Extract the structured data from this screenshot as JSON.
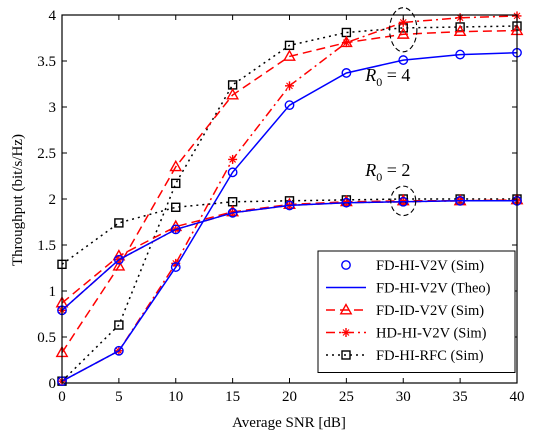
{
  "chart_data": {
    "type": "line",
    "xlabel": "Average SNR [dB]",
    "ylabel": "Throughput (bit/s/Hz)",
    "xlim": [
      0,
      40
    ],
    "ylim": [
      0,
      4
    ],
    "x_ticks": [
      0,
      5,
      10,
      15,
      20,
      25,
      30,
      35,
      40
    ],
    "y_ticks": [
      0,
      0.5,
      1,
      1.5,
      2,
      2.5,
      3,
      3.5,
      4
    ],
    "grid": false,
    "legend_position": "bottom-right",
    "legend": [
      {
        "label": "FD-HI-V2V (Sim)",
        "series": "fd_hi_sim"
      },
      {
        "label": "FD-HI-V2V (Theo)",
        "series": "fd_hi_theo"
      },
      {
        "label": "FD-ID-V2V (Sim)",
        "series": "fd_id_sim"
      },
      {
        "label": "HD-HI-V2V (Sim)",
        "series": "hd_hi_sim"
      },
      {
        "label": "FD-HI-RFC (Sim)",
        "series": "fd_rfc_sim"
      }
    ],
    "styles": {
      "fd_hi_sim": {
        "color": "#0000ff",
        "dash": "none",
        "marker": "circle",
        "line": false
      },
      "fd_hi_theo": {
        "color": "#0000ff",
        "dash": "none",
        "marker": "none",
        "line": true
      },
      "fd_id_sim": {
        "color": "#ff0000",
        "dash": "9,5",
        "marker": "triangle",
        "line": true
      },
      "hd_hi_sim": {
        "color": "#ff0000",
        "dash": "9,4,2,4",
        "marker": "plus",
        "line": true
      },
      "fd_rfc_sim": {
        "color": "#000000",
        "dash": "2,4",
        "marker": "square",
        "line": true
      }
    },
    "groups": [
      {
        "label_main": "R",
        "label_sub": "0",
        "label_rest": " = 4",
        "label_at": [
          30,
          3.28
        ],
        "ellipse": {
          "cx": 30,
          "cy": 3.84,
          "rx": 1.2,
          "ry": 0.24
        },
        "series": {
          "fd_hi_sim": {
            "x": [
              0,
              5,
              10,
              15,
              20,
              25,
              30,
              35,
              40
            ],
            "y": [
              0.02,
              0.35,
              1.26,
              2.29,
              3.02,
              3.37,
              3.51,
              3.57,
              3.59
            ]
          },
          "fd_hi_theo": {
            "x": [
              0,
              5,
              10,
              15,
              20,
              25,
              30,
              35,
              40
            ],
            "y": [
              0.02,
              0.35,
              1.26,
              2.29,
              3.02,
              3.37,
              3.51,
              3.57,
              3.59
            ]
          },
          "fd_id_sim": {
            "x": [
              0,
              5,
              10,
              15,
              20,
              25,
              30,
              35,
              40
            ],
            "y": [
              0.33,
              1.27,
              2.35,
              3.13,
              3.55,
              3.7,
              3.79,
              3.82,
              3.83
            ]
          },
          "hd_hi_sim": {
            "x": [
              0,
              5,
              10,
              15,
              20,
              25,
              30,
              35,
              40
            ],
            "y": [
              0.02,
              0.35,
              1.3,
              2.43,
              3.23,
              3.7,
              3.92,
              3.97,
              3.99
            ]
          },
          "fd_rfc_sim": {
            "x": [
              0,
              5,
              10,
              15,
              20,
              25,
              30,
              35,
              40
            ],
            "y": [
              0.02,
              0.63,
              2.17,
              3.24,
              3.67,
              3.81,
              3.86,
              3.87,
              3.88
            ]
          }
        }
      },
      {
        "label_main": "R",
        "label_sub": "0",
        "label_rest": " = 2",
        "label_at": [
          30,
          2.25
        ],
        "ellipse": {
          "cx": 30,
          "cy": 1.98,
          "rx": 1.1,
          "ry": 0.16
        },
        "series": {
          "fd_hi_sim": {
            "x": [
              0,
              5,
              10,
              15,
              20,
              25,
              30,
              35,
              40
            ],
            "y": [
              0.79,
              1.34,
              1.67,
              1.85,
              1.93,
              1.96,
              1.97,
              1.98,
              1.98
            ]
          },
          "fd_hi_theo": {
            "x": [
              0,
              5,
              10,
              15,
              20,
              25,
              30,
              35,
              40
            ],
            "y": [
              0.79,
              1.34,
              1.67,
              1.85,
              1.93,
              1.96,
              1.97,
              1.98,
              1.98
            ]
          },
          "fd_id_sim": {
            "x": [
              0,
              5,
              10,
              15,
              20,
              25,
              30,
              35,
              40
            ],
            "y": [
              0.87,
              1.38,
              1.7,
              1.86,
              1.94,
              1.97,
              1.98,
              1.98,
              1.99
            ]
          },
          "hd_hi_sim": {
            "x": [
              0,
              5,
              10,
              15,
              20,
              25,
              30,
              35,
              40
            ],
            "y": [
              0.79,
              1.34,
              1.67,
              1.85,
              1.93,
              1.96,
              1.97,
              1.98,
              1.98
            ]
          },
          "fd_rfc_sim": {
            "x": [
              0,
              5,
              10,
              15,
              20,
              25,
              30,
              35,
              40
            ],
            "y": [
              1.29,
              1.74,
              1.91,
              1.97,
              1.98,
              1.99,
              2.0,
              2.0,
              2.0
            ]
          }
        }
      }
    ]
  }
}
